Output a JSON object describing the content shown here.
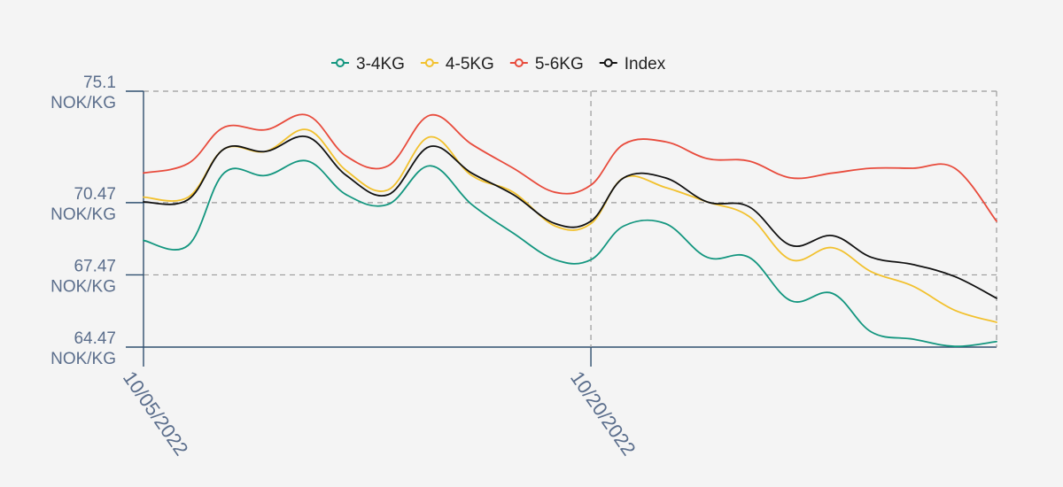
{
  "chart_data": {
    "type": "line",
    "legend_position": "top",
    "grid": true,
    "ylim": [
      64.47,
      75.1
    ],
    "y_ticks": [
      {
        "value": 75.1,
        "line1": "75.1",
        "line2": "NOK/KG"
      },
      {
        "value": 70.47,
        "line1": "70.47",
        "line2": "NOK/KG"
      },
      {
        "value": 67.47,
        "line1": "67.47",
        "line2": "NOK/KG"
      },
      {
        "value": 64.47,
        "line1": "64.47",
        "line2": "NOK/KG"
      }
    ],
    "x_ticks": [
      {
        "value": 0,
        "label": "10/05/2022"
      },
      {
        "value": 15,
        "label": "10/20/2022"
      }
    ],
    "x_range": [
      0,
      28.6
    ],
    "x": [
      0,
      1.5,
      2.7,
      4.1,
      5.5,
      6.8,
      8.2,
      9.6,
      11,
      12.4,
      13.8,
      15,
      16.1,
      17.5,
      18.9,
      20.3,
      21.7,
      23.1,
      24.4,
      25.8,
      27.2,
      28.6
    ],
    "series": [
      {
        "name": "3-4KG",
        "color": "#13967f",
        "values": [
          68.9,
          68.7,
          71.7,
          71.6,
          72.2,
          70.8,
          70.4,
          72.0,
          70.4,
          69.2,
          68.1,
          68.1,
          69.5,
          69.6,
          68.2,
          68.2,
          66.4,
          66.7,
          65.1,
          64.8,
          64.5,
          64.7
        ]
      },
      {
        "name": "4-5KG",
        "color": "#f2c12e",
        "values": [
          70.7,
          70.7,
          72.7,
          72.6,
          73.5,
          71.8,
          71.0,
          73.2,
          71.6,
          70.9,
          69.5,
          69.6,
          71.5,
          71.1,
          70.5,
          69.9,
          68.1,
          68.6,
          67.6,
          67.0,
          66.0,
          65.5
        ]
      },
      {
        "name": "5-6KG",
        "color": "#e84b3c",
        "values": [
          71.7,
          72.1,
          73.6,
          73.5,
          74.1,
          72.4,
          72.0,
          74.1,
          72.9,
          71.9,
          70.9,
          71.2,
          72.9,
          73.0,
          72.3,
          72.2,
          71.5,
          71.7,
          71.9,
          71.9,
          71.9,
          69.7
        ]
      },
      {
        "name": "Index",
        "color": "#111111",
        "values": [
          70.5,
          70.6,
          72.7,
          72.6,
          73.2,
          71.6,
          70.8,
          72.8,
          71.7,
          70.8,
          69.6,
          69.7,
          71.5,
          71.5,
          70.5,
          70.3,
          68.7,
          69.1,
          68.2,
          67.9,
          67.4,
          66.5
        ]
      }
    ]
  }
}
